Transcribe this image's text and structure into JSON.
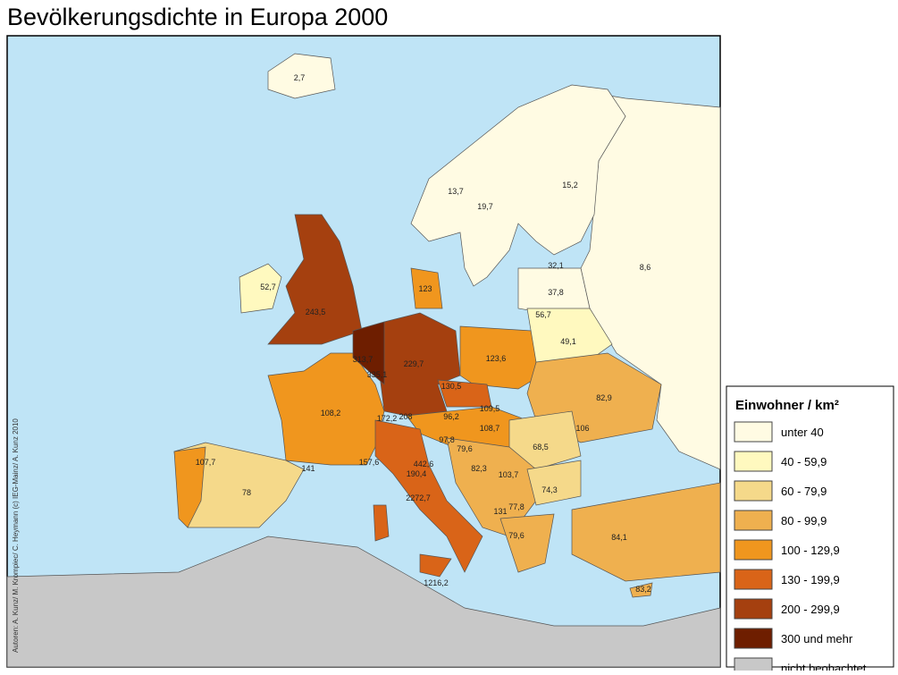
{
  "header": {
    "title": "Bevölkerungsdichte in Europa 2000"
  },
  "credits": "Autoren: A. Kunz/ M. Krompiec/ C. Heymann (c) IEG-Mainz/ A. Kunz 2010",
  "legend": {
    "title": "Einwohner / km²",
    "items": [
      {
        "label": "unter  40",
        "color": "#fffbe3"
      },
      {
        "label": "40 -   59,9",
        "color": "#fff9bf"
      },
      {
        "label": "60 -   79,9",
        "color": "#f5d98a"
      },
      {
        "label": "80 -   99,9",
        "color": "#efb04f"
      },
      {
        "label": "100 - 129,9",
        "color": "#f0961e"
      },
      {
        "label": "130 - 199,9",
        "color": "#d96418"
      },
      {
        "label": "200 - 299,9",
        "color": "#a5400f"
      },
      {
        "label": "300 und mehr",
        "color": "#6e1e00"
      },
      {
        "label": "nicht beobachtet",
        "color": "#c8c8c8"
      }
    ]
  },
  "map": {
    "labels": [
      "2,7",
      "13,7",
      "19,7",
      "15,2",
      "8,6",
      "32,1",
      "37,8",
      "56,7",
      "49,1",
      "52,7",
      "243,5",
      "123",
      "313,7",
      "335,1",
      "229,7",
      "123,6",
      "82,9",
      "130,5",
      "109,5",
      "108,7",
      "96,2",
      "108,2",
      "172,2",
      "208",
      "97,8",
      "79,6",
      "68,5",
      "106",
      "107,7",
      "78",
      "141",
      "157,6",
      "442,6",
      "190,4",
      "82,3",
      "103,7",
      "74,3",
      "2272,7",
      "77,8",
      "131",
      "79,6",
      "84,1",
      "1216,2",
      "83,2"
    ]
  }
}
